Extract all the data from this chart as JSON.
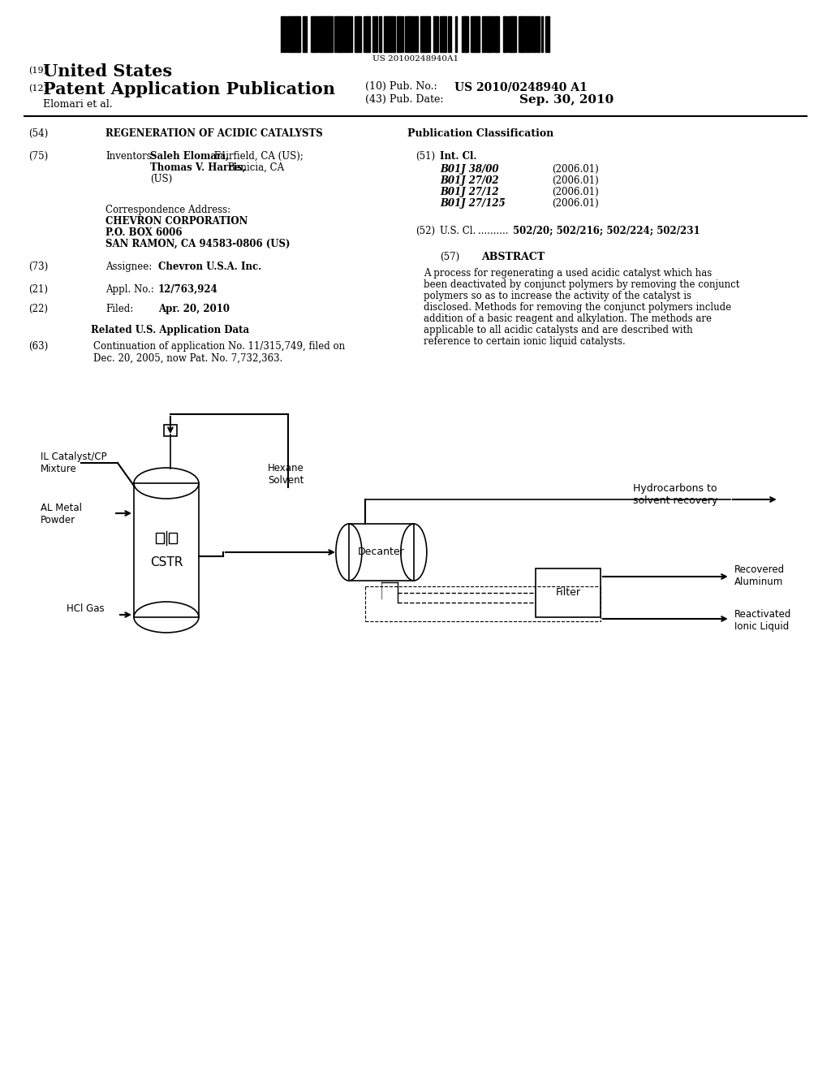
{
  "background_color": "#ffffff",
  "barcode_text": "US 20100248940A1",
  "header": {
    "country_label": "(19)",
    "country": "United States",
    "type_label": "(12)",
    "type": "Patent Application Publication",
    "pub_no_label": "(10) Pub. No.:",
    "pub_no": "US 2010/0248940 A1",
    "author": "Elomari et al.",
    "pub_date_label": "(43) Pub. Date:",
    "pub_date": "Sep. 30, 2010"
  },
  "left_col": {
    "title_label": "(54)",
    "title": "REGENERATION OF ACIDIC CATALYSTS",
    "inventors_label": "(75)",
    "inventors_key": "Inventors:",
    "inventors_val": "Saleh Elomari, Fairfield, CA (US);\nThomas V. Harris, Benicia, CA\n(US)",
    "corr_address": "Correspondence Address:\nCHEVRON CORPORATION\nP.O. BOX 6006\nSAN RAMON, CA 94583-0806 (US)",
    "assignee_label": "(73)",
    "assignee_key": "Assignee:",
    "assignee_val": "Chevron U.S.A. Inc.",
    "appl_label": "(21)",
    "appl_key": "Appl. No.:",
    "appl_val": "12/763,924",
    "filed_label": "(22)",
    "filed_key": "Filed:",
    "filed_val": "Apr. 20, 2010",
    "related_title": "Related U.S. Application Data",
    "related_label": "(63)",
    "related_val": "Continuation of application No. 11/315,749, filed on\nDec. 20, 2005, now Pat. No. 7,732,363."
  },
  "right_col": {
    "pub_class_title": "Publication Classification",
    "intcl_label": "(51)",
    "intcl_key": "Int. Cl.",
    "intcl_entries": [
      [
        "B01J 38/00",
        "(2006.01)"
      ],
      [
        "B01J 27/02",
        "(2006.01)"
      ],
      [
        "B01J 27/12",
        "(2006.01)"
      ],
      [
        "B01J 27/125",
        "(2006.01)"
      ]
    ],
    "uscl_label": "(52)",
    "uscl_key": "U.S. Cl.",
    "uscl_val": "502/20; 502/216; 502/224; 502/231",
    "abstract_label": "(57)",
    "abstract_title": "ABSTRACT",
    "abstract_text": "A process for regenerating a used acidic catalyst which has been deactivated by conjunct polymers by removing the conjunct polymers so as to increase the activity of the catalyst is disclosed. Methods for removing the conjunct polymers include addition of a basic reagent and alkylation. The methods are applicable to all acidic catalysts and are described with reference to certain ionic liquid catalysts."
  },
  "diagram": {
    "cstr_label": "CSTR",
    "decanter_label": "Decanter",
    "filter_label": "Filter",
    "il_catalyst_label": "IL Catalyst/CP\nMixture",
    "al_metal_label": "AL Metal\nPowder",
    "hexane_label": "Hexane\nSolvent",
    "hcl_label": "HCl Gas",
    "hydrocarbons_label": "Hydrocarbons to\nsolvent recovery",
    "recovered_al_label": "Recovered\nAluminum",
    "reactivated_label": "Reactivated\nIonic Liquid"
  }
}
